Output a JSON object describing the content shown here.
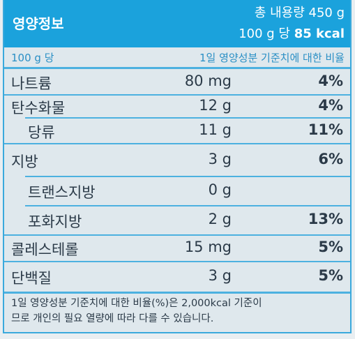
{
  "header": {
    "title": "영양정보",
    "total": "총 내용량 450 g",
    "per": "100 g 당",
    "kcal": "85 kcal"
  },
  "subheader": {
    "basis": "100 g 당",
    "ratio": "1일 영양성분 기준치에 대한 비율"
  },
  "rows": [
    {
      "name": "나트륨",
      "amount": "80 mg",
      "percent": "4%"
    },
    {
      "name": "탄수화물",
      "amount": "12 g",
      "percent": "4%"
    },
    {
      "name": "당류",
      "amount": "11 g",
      "percent": "11%",
      "indent": true
    },
    {
      "name": "지방",
      "amount": "3 g",
      "percent": "6%"
    },
    {
      "name": "트랜스지방",
      "amount": "0 g",
      "indent": true
    },
    {
      "name": "포화지방",
      "amount": "2 g",
      "percent": "13%",
      "indent": true
    },
    {
      "name": "콜레스테롤",
      "amount": "15 mg",
      "percent": "5%"
    },
    {
      "name": "단백질",
      "amount": "3 g",
      "percent": "5%"
    }
  ],
  "footer": [
    "1일 영양성분 기준치에 대한 비율(%)은 2,000kcal 기준이",
    "므로 개인의 필요 열량에 따라 다를 수 있습니다."
  ]
}
